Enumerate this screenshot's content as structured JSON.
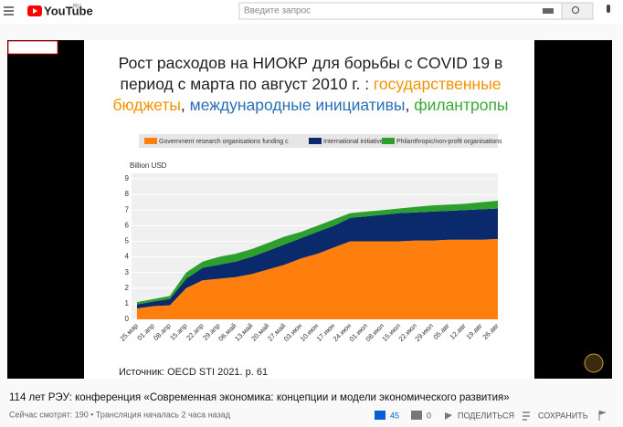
{
  "header": {
    "logo": "YouTube",
    "region": "RU",
    "search_placeholder": "Введите запрос"
  },
  "slide": {
    "title_lines": [
      [
        {
          "text": "Рост расходов на НИОКР для борьбы с COVID 19 в",
          "color": "#222222"
        }
      ],
      [
        {
          "text": "период с марта по август 2010 г. : ",
          "color": "#222222"
        },
        {
          "text": "государственные",
          "color": "#f39200"
        }
      ],
      [
        {
          "text": "бюджеты",
          "color": "#f39200"
        },
        {
          "text": ", ",
          "color": "#222222"
        },
        {
          "text": "международные инициативы",
          "color": "#2a6fb5"
        },
        {
          "text": ", ",
          "color": "#222222"
        },
        {
          "text": "филантропы",
          "color": "#3aa935"
        }
      ]
    ],
    "source": "Источник: OECD STI 2021. p. 61"
  },
  "chart_data": {
    "type": "stacked_area",
    "y_label": "Billion USD",
    "categories": [
      "25.мар",
      "01.апр",
      "08.апр",
      "15.апр",
      "22.апр",
      "29.апр",
      "06.май",
      "13.май",
      "20.май",
      "27.май",
      "03.июн",
      "10.июн",
      "17.июн",
      "24.июн",
      "01.июл",
      "08.июл",
      "15.июл",
      "22.июл",
      "29.июл",
      "05.авг",
      "12.авг",
      "19.авг",
      "26.авг"
    ],
    "series": [
      {
        "name": "Government research organisations funding c",
        "color": "#ff7f0e",
        "values": [
          0.7,
          0.85,
          0.9,
          2.0,
          2.5,
          2.6,
          2.7,
          2.9,
          3.2,
          3.5,
          3.9,
          4.2,
          4.6,
          5.0,
          5.0,
          5.0,
          5.0,
          5.05,
          5.05,
          5.1,
          5.1,
          5.1,
          5.15
        ]
      },
      {
        "name": "International initiatives",
        "color": "#0a2a6b",
        "values": [
          0.25,
          0.3,
          0.4,
          0.6,
          0.8,
          0.9,
          1.0,
          1.1,
          1.2,
          1.3,
          1.3,
          1.4,
          1.4,
          1.5,
          1.6,
          1.7,
          1.8,
          1.8,
          1.85,
          1.85,
          1.9,
          1.95,
          1.95
        ]
      },
      {
        "name": "Philanthropic/non-profit organisations",
        "color": "#2ca02c",
        "values": [
          0.15,
          0.15,
          0.2,
          0.4,
          0.4,
          0.5,
          0.5,
          0.5,
          0.5,
          0.5,
          0.4,
          0.4,
          0.4,
          0.3,
          0.3,
          0.3,
          0.3,
          0.35,
          0.4,
          0.4,
          0.4,
          0.45,
          0.5
        ]
      }
    ],
    "ylim": [
      0,
      9
    ],
    "yticks": [
      0,
      1,
      2,
      3,
      4,
      5,
      6,
      7,
      8,
      9
    ],
    "grid": true
  },
  "video_info": {
    "title": "114 лет РЭУ: конференция «Современная экономика: концепции и модели экономического развития»",
    "meta": "Сейчас смотрят: 190 • Трансляция началась 2 часа назад",
    "likes": 45,
    "dislikes": 0,
    "share": "ПОДЕЛИТЬСЯ",
    "save": "СОХРАНИТЬ"
  }
}
